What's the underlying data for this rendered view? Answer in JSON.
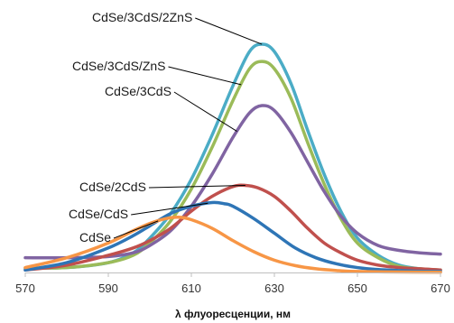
{
  "chart_data": {
    "type": "line",
    "title": "",
    "xlabel": "λ флуоресценции,  нм",
    "ylabel": "",
    "xlim": [
      570,
      670
    ],
    "ylim": [
      0,
      1
    ],
    "x_ticks": [
      "570",
      "590",
      "610",
      "630",
      "650",
      "670"
    ],
    "grid": false,
    "legend": "inline-annotations",
    "axis_color": "#bfbfbf",
    "series": [
      {
        "name": "CdSe/3CdS/2ZnS",
        "color": "#4BACC6",
        "x": [
          570,
          580,
          590,
          596,
          600,
          605,
          610,
          615,
          620,
          624,
          627,
          630,
          634,
          638,
          642,
          646,
          650,
          655,
          660,
          665,
          670
        ],
        "y": [
          0.018,
          0.02,
          0.04,
          0.08,
          0.14,
          0.24,
          0.38,
          0.56,
          0.76,
          0.9,
          0.93,
          0.9,
          0.77,
          0.58,
          0.4,
          0.25,
          0.14,
          0.07,
          0.03,
          0.015,
          0.01
        ]
      },
      {
        "name": "CdSe/3CdS/ZnS",
        "color": "#9BBB59",
        "x": [
          570,
          580,
          590,
          596,
          600,
          605,
          610,
          615,
          620,
          624,
          627,
          630,
          634,
          638,
          642,
          646,
          650,
          655,
          660,
          665,
          670
        ],
        "y": [
          0.018,
          0.02,
          0.04,
          0.07,
          0.12,
          0.21,
          0.34,
          0.51,
          0.7,
          0.83,
          0.86,
          0.83,
          0.71,
          0.53,
          0.36,
          0.22,
          0.12,
          0.06,
          0.025,
          0.015,
          0.01
        ]
      },
      {
        "name": "CdSe/3CdS",
        "color": "#8064A2",
        "x": [
          570,
          580,
          590,
          596,
          600,
          605,
          610,
          615,
          620,
          624,
          627,
          630,
          634,
          638,
          642,
          646,
          650,
          655,
          660,
          665,
          670
        ],
        "y": [
          0.06,
          0.06,
          0.065,
          0.08,
          0.11,
          0.17,
          0.27,
          0.4,
          0.55,
          0.65,
          0.68,
          0.66,
          0.57,
          0.45,
          0.33,
          0.23,
          0.16,
          0.11,
          0.09,
          0.08,
          0.075
        ]
      },
      {
        "name": "CdSe/2CdS",
        "color": "#C0504D",
        "x": [
          570,
          580,
          590,
          596,
          600,
          605,
          610,
          615,
          620,
          623,
          626,
          630,
          634,
          638,
          642,
          646,
          650,
          655,
          660,
          665,
          670
        ],
        "y": [
          0.01,
          0.03,
          0.07,
          0.1,
          0.13,
          0.18,
          0.25,
          0.31,
          0.35,
          0.355,
          0.345,
          0.31,
          0.25,
          0.18,
          0.12,
          0.08,
          0.05,
          0.03,
          0.02,
          0.015,
          0.01
        ]
      },
      {
        "name": "CdSe/CdS",
        "color": "#2E75B6",
        "x": [
          570,
          580,
          590,
          596,
          600,
          605,
          610,
          615,
          618,
          620,
          625,
          630,
          635,
          640,
          645,
          650,
          655,
          660,
          665,
          670
        ],
        "y": [
          0.01,
          0.04,
          0.1,
          0.15,
          0.19,
          0.24,
          0.27,
          0.285,
          0.28,
          0.27,
          0.22,
          0.16,
          0.1,
          0.06,
          0.035,
          0.02,
          0.012,
          0.008,
          0.005,
          0.004
        ]
      },
      {
        "name": "CdSe",
        "color": "#F79646",
        "x": [
          570,
          580,
          590,
          596,
          600,
          604,
          607,
          610,
          615,
          620,
          625,
          630,
          635,
          640,
          645,
          650,
          660,
          670
        ],
        "y": [
          0.02,
          0.06,
          0.12,
          0.17,
          0.2,
          0.22,
          0.225,
          0.215,
          0.18,
          0.13,
          0.085,
          0.05,
          0.028,
          0.015,
          0.008,
          0.004,
          0.002,
          0.001
        ]
      }
    ],
    "annotations": [
      {
        "text": "CdSe/3CdS/2ZnS",
        "series": "CdSe/3CdS/2ZnS",
        "target_x": 627
      },
      {
        "text": "CdSe/3CdS/ZnS",
        "series": "CdSe/3CdS/ZnS",
        "target_x": 622
      },
      {
        "text": "CdSe/3CdS",
        "series": "CdSe/3CdS",
        "target_x": 621
      },
      {
        "text": "CdSe/2CdS",
        "series": "CdSe/2CdS",
        "target_x": 623
      },
      {
        "text": "CdSe/CdS",
        "series": "CdSe/CdS",
        "target_x": 614
      },
      {
        "text": "CdSe",
        "series": "CdSe",
        "target_x": 602
      }
    ]
  }
}
